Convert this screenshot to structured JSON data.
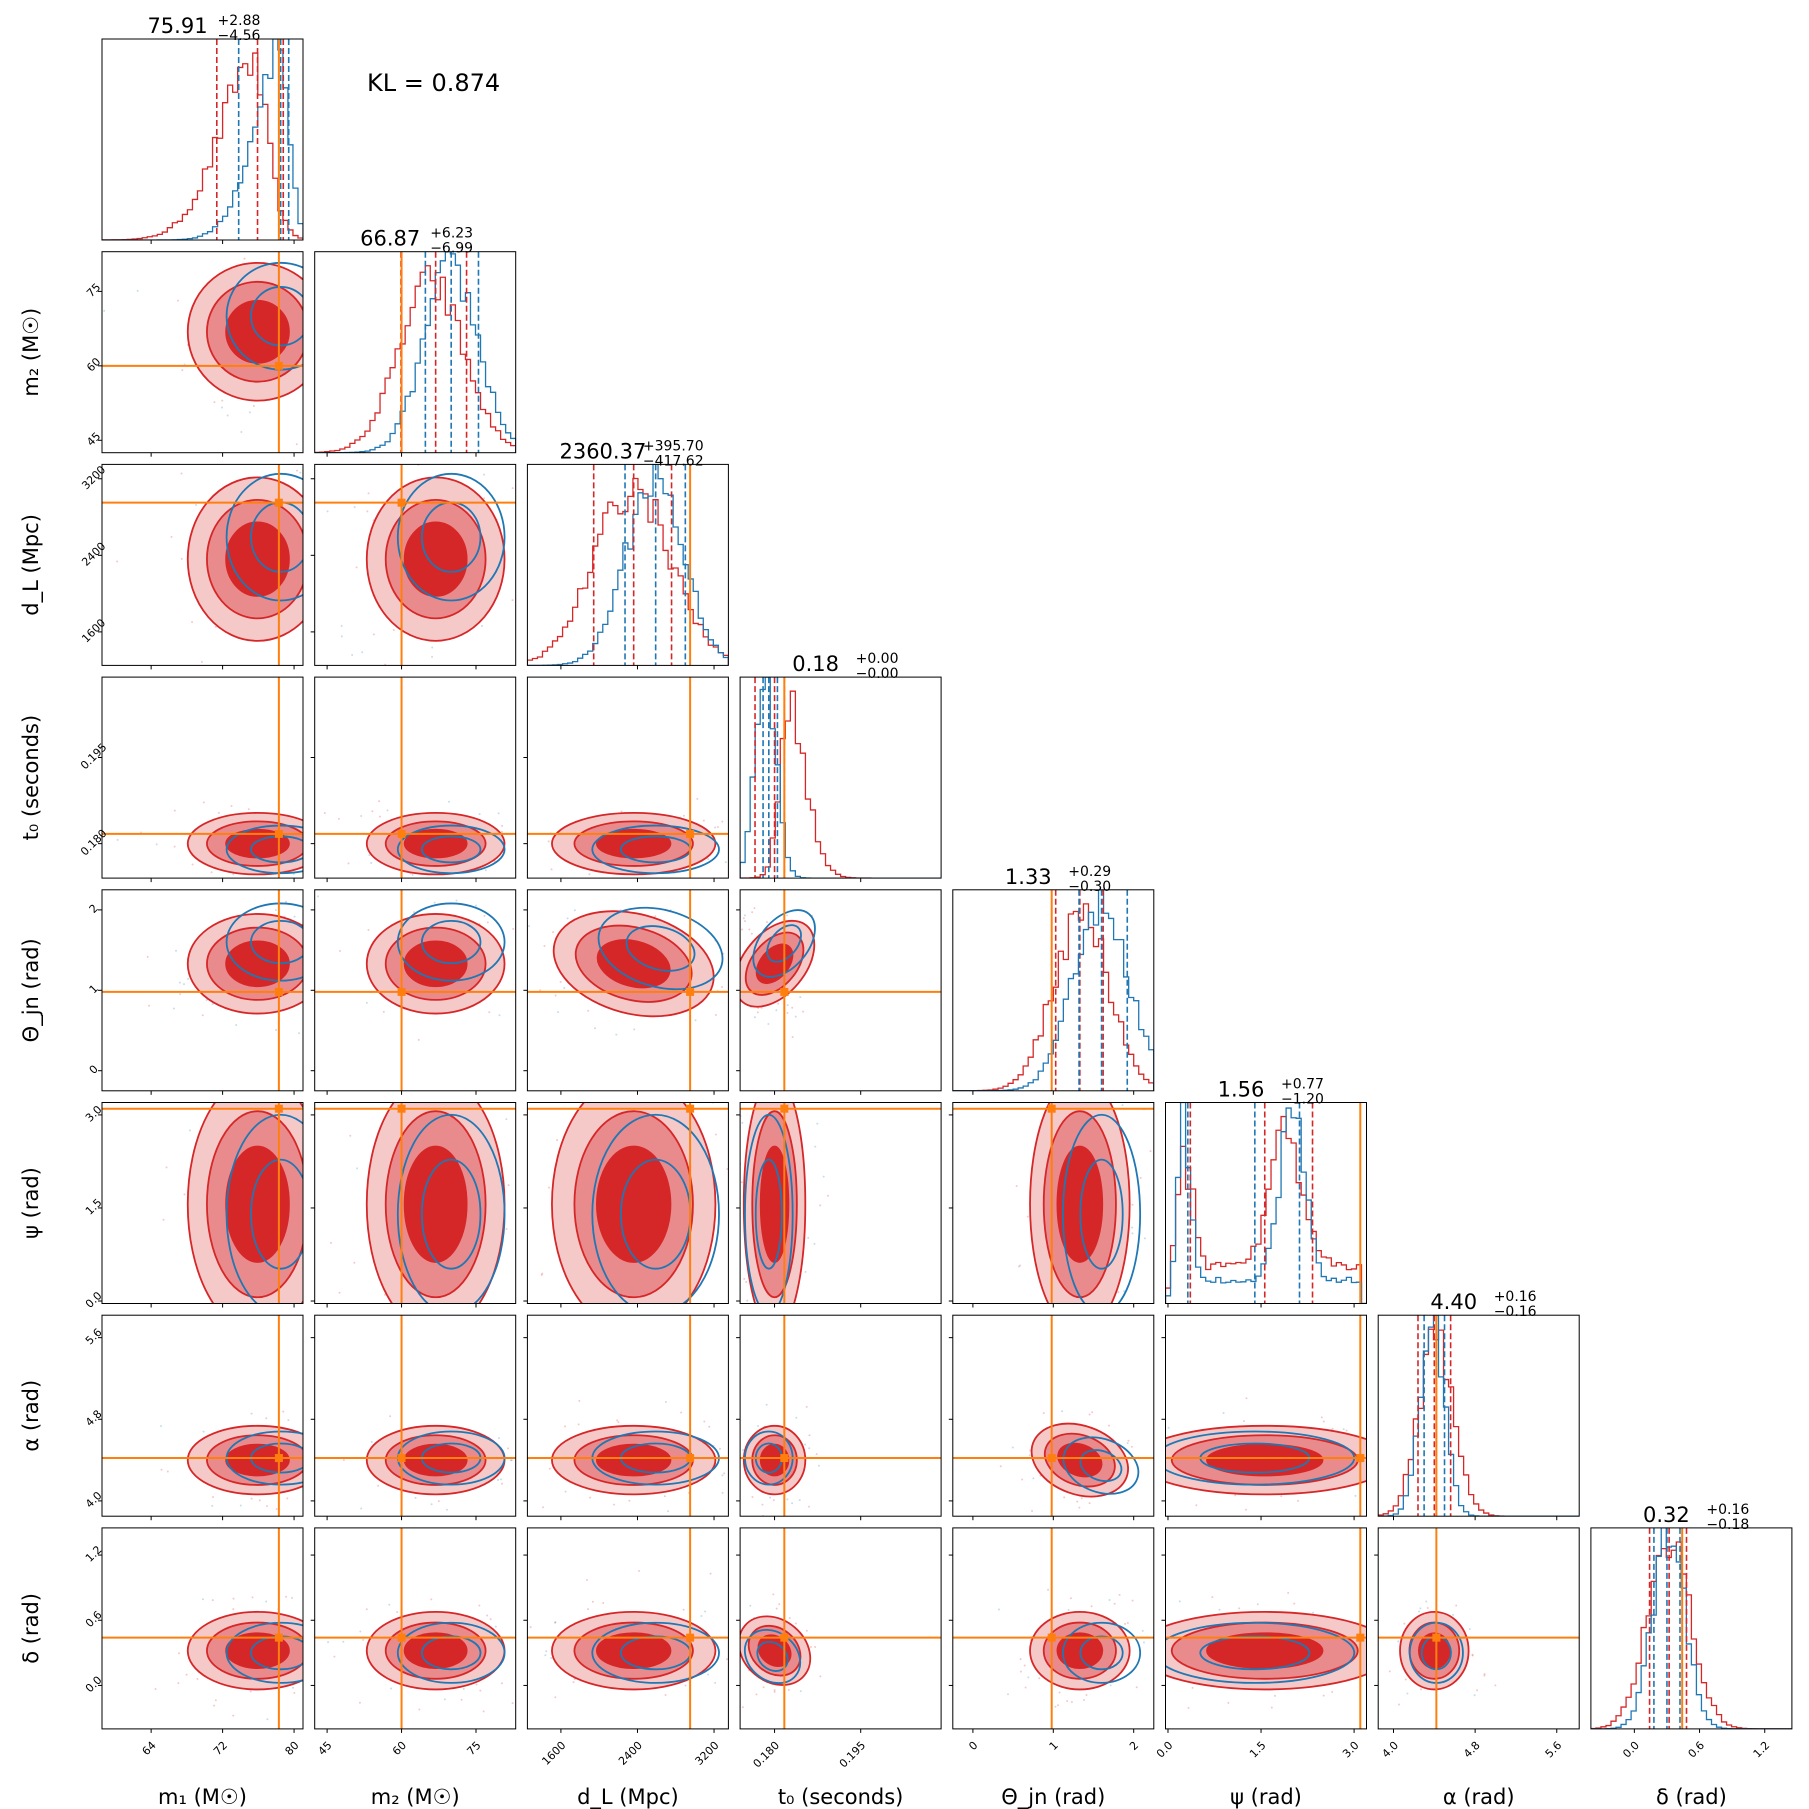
{
  "kl_text": "KL = 0.874",
  "colors": {
    "red": "#d62728",
    "red_mid": "#e98b8c",
    "red_light": "#f6c9c9",
    "blue": "#1f77b4",
    "truth": "#ff7f0e"
  },
  "chart_data": {
    "type": "corner",
    "params": [
      {
        "key": "m1",
        "label": "m₁ (M☉)",
        "range": [
          58.5,
          81
        ],
        "ticks": [
          64,
          72,
          80
        ],
        "tick_labels": [
          "64",
          "72",
          "80"
        ],
        "truth": 78.3,
        "title_main": "75.91",
        "title_sup": "+2.88",
        "title_sub": "−4.56",
        "red_q": [
          71.35,
          75.91,
          78.79
        ],
        "blue_q": [
          73.8,
          78.5,
          79.4
        ]
      },
      {
        "key": "m2",
        "label": "m₂ (M☉)",
        "range": [
          42.5,
          83
        ],
        "ticks": [
          45,
          60,
          75
        ],
        "tick_labels": [
          "45",
          "60",
          "75"
        ],
        "truth": 60.0,
        "title_main": "66.87",
        "title_sup": "+6.23",
        "title_sub": "−6.99",
        "red_q": [
          59.88,
          66.87,
          73.1
        ],
        "blue_q": [
          64.8,
          70.0,
          75.5
        ]
      },
      {
        "key": "dL",
        "label": "d_L (Mpc)",
        "range": [
          1250,
          3350
        ],
        "ticks": [
          1600,
          2400,
          3200
        ],
        "tick_labels": [
          "1600",
          "2400",
          "3200"
        ],
        "truth": 2950,
        "title_main": "2360.37",
        "title_sup": "+395.70",
        "title_sub": "−417.62",
        "red_q": [
          1942.75,
          2360.37,
          2756.07
        ],
        "blue_q": [
          2270,
          2590,
          2900
        ]
      },
      {
        "key": "t0",
        "label": "t₀ (seconds)",
        "range": [
          0.174,
          0.209
        ],
        "ticks": [
          0.18,
          0.195
        ],
        "tick_labels": [
          "0.180",
          "0.195"
        ],
        "truth": 0.1817,
        "title_main": "0.18",
        "title_sup": "+0.00",
        "title_sub": "−0.00",
        "red_q": [
          0.1766,
          0.18,
          0.1817
        ],
        "blue_q": [
          0.178,
          0.179,
          0.1805
        ]
      },
      {
        "key": "theta",
        "label": "Θ_jn (rad)",
        "range": [
          -0.25,
          2.25
        ],
        "ticks": [
          0,
          1,
          2
        ],
        "tick_labels": [
          "0",
          "1",
          "2"
        ],
        "truth": 0.98,
        "title_main": "1.33",
        "title_sup": "+0.29",
        "title_sub": "−0.30",
        "red_q": [
          1.03,
          1.33,
          1.62
        ],
        "blue_q": [
          1.32,
          1.6,
          1.92
        ]
      },
      {
        "key": "psi",
        "label": "ψ (rad)",
        "range": [
          -0.04,
          3.2
        ],
        "ticks": [
          0.0,
          1.5,
          3.0
        ],
        "tick_labels": [
          "0.0",
          "1.5",
          "3.0"
        ],
        "truth": 3.1,
        "title_main": "1.56",
        "title_sup": "+0.77",
        "title_sub": "−1.20",
        "red_q": [
          0.36,
          1.56,
          2.33
        ],
        "blue_q": [
          0.32,
          1.4,
          2.12
        ]
      },
      {
        "key": "alpha",
        "label": "α (rad)",
        "range": [
          3.85,
          5.82
        ],
        "ticks": [
          4.0,
          4.8,
          5.6
        ],
        "tick_labels": [
          "4.0",
          "4.8",
          "5.6"
        ],
        "truth": 4.42,
        "title_main": "4.40",
        "title_sup": "+0.16",
        "title_sub": "−0.16",
        "red_q": [
          4.24,
          4.4,
          4.56
        ],
        "blue_q": [
          4.3,
          4.42,
          4.5
        ]
      },
      {
        "key": "delta",
        "label": "δ (rad)",
        "range": [
          -0.4,
          1.45
        ],
        "ticks": [
          0.0,
          0.6,
          1.2
        ],
        "tick_labels": [
          "0.0",
          "0.6",
          "1.2"
        ],
        "truth": 0.44,
        "title_main": "0.32",
        "title_sup": "+0.16",
        "title_sub": "−0.18",
        "red_q": [
          0.14,
          0.32,
          0.48
        ],
        "blue_q": [
          0.18,
          0.3,
          0.42
        ]
      }
    ],
    "red_hist_fn": [
      {
        "type": "skew",
        "mu": 77,
        "sigma": 4.5,
        "skew": -3
      },
      {
        "type": "gauss",
        "mu": 66,
        "sigma": 6.5
      },
      {
        "type": "gauss",
        "mu": 2350,
        "sigma": 400
      },
      {
        "type": "skew",
        "mu": 0.181,
        "sigma": 0.0035,
        "skew": 2.5
      },
      {
        "type": "gauss",
        "mu": 1.35,
        "sigma": 0.35
      },
      {
        "type": "bimodal",
        "mu1": 0.25,
        "s1": 0.12,
        "mu2": 1.9,
        "s2": 0.25,
        "floor": 0.25
      },
      {
        "type": "gauss",
        "mu": 4.42,
        "sigma": 0.17
      },
      {
        "type": "gauss",
        "mu": 0.32,
        "sigma": 0.2
      }
    ],
    "blue_hist_fn": [
      {
        "type": "skew",
        "mu": 79.5,
        "sigma": 3.5,
        "skew": -4
      },
      {
        "type": "gauss",
        "mu": 70,
        "sigma": 5.5
      },
      {
        "type": "gauss",
        "mu": 2580,
        "sigma": 300
      },
      {
        "type": "gauss",
        "mu": 0.1785,
        "sigma": 0.0018
      },
      {
        "type": "gauss",
        "mu": 1.6,
        "sigma": 0.35
      },
      {
        "type": "bimodal",
        "mu1": 0.25,
        "s1": 0.1,
        "mu2": 2.0,
        "s2": 0.2,
        "floor": 0.12
      },
      {
        "type": "gauss",
        "mu": 4.38,
        "sigma": 0.12
      },
      {
        "type": "gauss",
        "mu": 0.32,
        "sigma": 0.15
      }
    ],
    "legend": []
  }
}
